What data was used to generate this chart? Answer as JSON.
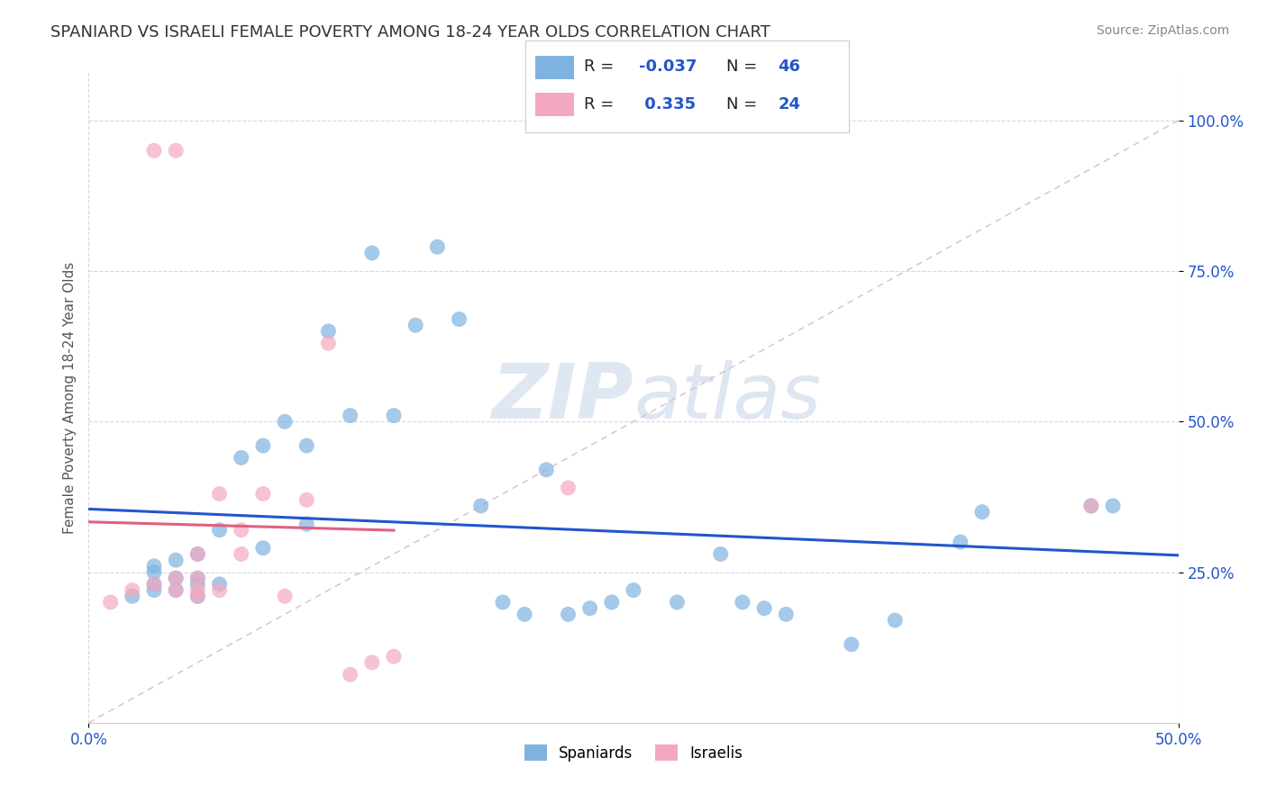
{
  "title": "SPANIARD VS ISRAELI FEMALE POVERTY AMONG 18-24 YEAR OLDS CORRELATION CHART",
  "source": "Source: ZipAtlas.com",
  "ylabel": "Female Poverty Among 18-24 Year Olds",
  "xlim": [
    0.0,
    0.5
  ],
  "ylim": [
    0.0,
    1.08
  ],
  "xtick_positions": [
    0.0,
    0.5
  ],
  "xtick_labels": [
    "0.0%",
    "50.0%"
  ],
  "ytick_positions": [
    0.25,
    0.5,
    0.75,
    1.0
  ],
  "ytick_labels": [
    "25.0%",
    "50.0%",
    "75.0%",
    "100.0%"
  ],
  "spaniard_color": "#7eb3e0",
  "israeli_color": "#f4a8c0",
  "spaniard_R": -0.037,
  "spaniard_N": 46,
  "israeli_R": 0.335,
  "israeli_N": 24,
  "legend_R_color": "#2255cc",
  "trend_sp_color": "#2255cc",
  "trend_isr_color": "#e06080",
  "spaniard_x": [
    0.02,
    0.03,
    0.03,
    0.03,
    0.03,
    0.04,
    0.04,
    0.04,
    0.05,
    0.05,
    0.05,
    0.05,
    0.06,
    0.06,
    0.07,
    0.08,
    0.08,
    0.09,
    0.1,
    0.1,
    0.11,
    0.12,
    0.13,
    0.14,
    0.15,
    0.16,
    0.17,
    0.18,
    0.19,
    0.2,
    0.21,
    0.22,
    0.23,
    0.24,
    0.25,
    0.27,
    0.29,
    0.3,
    0.31,
    0.32,
    0.35,
    0.37,
    0.4,
    0.41,
    0.46,
    0.47
  ],
  "spaniard_y": [
    0.21,
    0.22,
    0.23,
    0.25,
    0.26,
    0.22,
    0.24,
    0.27,
    0.21,
    0.23,
    0.24,
    0.28,
    0.23,
    0.32,
    0.44,
    0.29,
    0.46,
    0.5,
    0.33,
    0.46,
    0.65,
    0.51,
    0.78,
    0.51,
    0.66,
    0.79,
    0.67,
    0.36,
    0.2,
    0.18,
    0.42,
    0.18,
    0.19,
    0.2,
    0.22,
    0.2,
    0.28,
    0.2,
    0.19,
    0.18,
    0.13,
    0.17,
    0.3,
    0.35,
    0.36,
    0.36
  ],
  "israeli_x": [
    0.01,
    0.02,
    0.03,
    0.03,
    0.04,
    0.04,
    0.04,
    0.05,
    0.05,
    0.05,
    0.05,
    0.06,
    0.06,
    0.07,
    0.07,
    0.08,
    0.09,
    0.1,
    0.11,
    0.12,
    0.13,
    0.14,
    0.22,
    0.46
  ],
  "israeli_y": [
    0.2,
    0.22,
    0.23,
    0.95,
    0.95,
    0.22,
    0.24,
    0.21,
    0.22,
    0.24,
    0.28,
    0.22,
    0.38,
    0.28,
    0.32,
    0.38,
    0.21,
    0.37,
    0.63,
    0.08,
    0.1,
    0.11,
    0.39,
    0.36
  ],
  "watermark_zip": "ZIP",
  "watermark_atlas": "atlas",
  "bg_color": "#ffffff",
  "grid_color": "#d0d8e8",
  "axis_label_color": "#2255cc",
  "title_color": "#333333"
}
